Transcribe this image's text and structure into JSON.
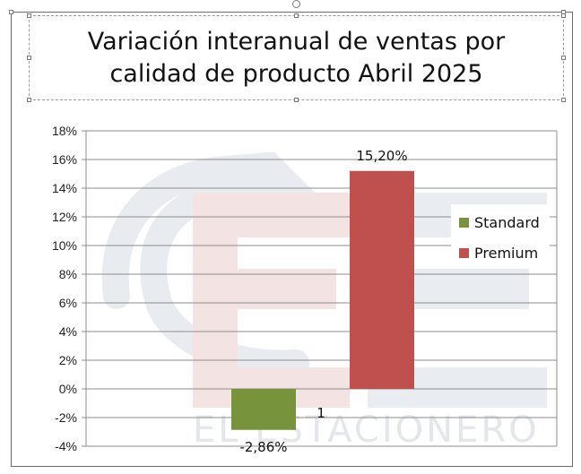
{
  "chart_data": {
    "type": "bar",
    "title": "Variación interanual de ventas por calidad de producto Abril 2025",
    "categories": [
      "1"
    ],
    "series": [
      {
        "name": "Standard",
        "values": [
          -2.86
        ],
        "label": "-2,86%",
        "color": "#77933c"
      },
      {
        "name": "Premium",
        "values": [
          15.2
        ],
        "label": "15,20%",
        "color": "#c0504d"
      }
    ],
    "ylim": [
      -4,
      18
    ],
    "ytick_step": 2,
    "yticks": [
      "-4%",
      "-2%",
      "0%",
      "2%",
      "4%",
      "6%",
      "8%",
      "10%",
      "12%",
      "14%",
      "16%",
      "18%"
    ],
    "grid": true,
    "legend": "right"
  },
  "watermark": {
    "text": "EL ESTACIONERO"
  }
}
